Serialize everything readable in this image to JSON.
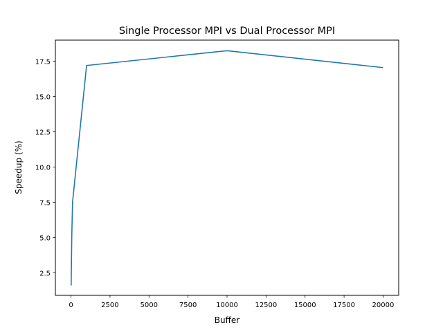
{
  "chart_data": {
    "type": "line",
    "title": "Single Processor MPI vs Dual Processor MPI",
    "xlabel": "Buffer",
    "ylabel": "Speedup (%)",
    "xlim": [
      -1000,
      21000
    ],
    "ylim": [
      0.9,
      19.0
    ],
    "xticks": [
      0,
      2500,
      5000,
      7500,
      10000,
      12500,
      15000,
      17500,
      20000
    ],
    "yticks": [
      2.5,
      5.0,
      7.5,
      10.0,
      12.5,
      15.0,
      17.5
    ],
    "xtick_labels": [
      "0",
      "2500",
      "5000",
      "7500",
      "10000",
      "12500",
      "15000",
      "17500",
      "20000"
    ],
    "ytick_labels": [
      "2.5",
      "5.0",
      "7.5",
      "10.0",
      "12.5",
      "15.0",
      "17.5"
    ],
    "grid": false,
    "legend": "none",
    "series": [
      {
        "color": "#1f77b4",
        "x": [
          10,
          50,
          100,
          1000,
          10000,
          20000
        ],
        "y": [
          1.6,
          5.0,
          7.5,
          17.2,
          18.25,
          17.05
        ]
      }
    ]
  }
}
